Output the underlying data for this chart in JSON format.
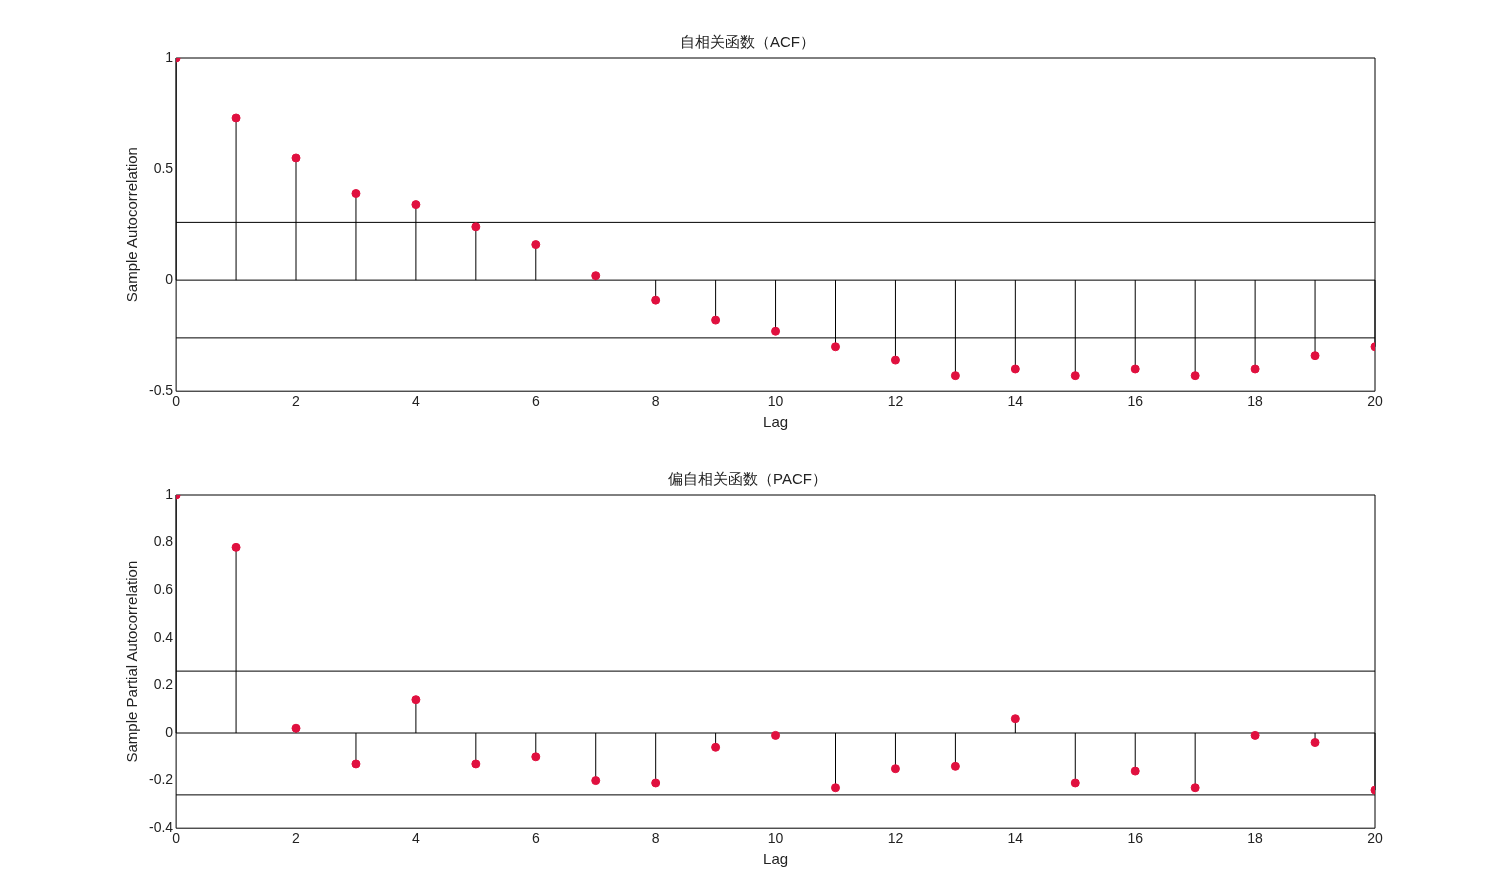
{
  "chart_data": [
    {
      "type": "lollipop",
      "title": "自相关函数（ACF）",
      "xlabel": "Lag",
      "ylabel": "Sample Autocorrelation",
      "color": "#e0103f",
      "marker": "circle",
      "x": [
        0,
        1,
        2,
        3,
        4,
        5,
        6,
        7,
        8,
        9,
        10,
        11,
        12,
        13,
        14,
        15,
        16,
        17,
        18,
        19,
        20
      ],
      "values": [
        1,
        0.73,
        0.55,
        0.39,
        0.34,
        0.24,
        0.16,
        0.02,
        -0.09,
        -0.18,
        -0.23,
        -0.3,
        -0.36,
        -0.43,
        -0.4,
        -0.43,
        -0.4,
        -0.43,
        -0.4,
        -0.34,
        -0.3
      ],
      "xlim": [
        0,
        20
      ],
      "xticks": [
        0,
        2,
        4,
        6,
        8,
        10,
        12,
        14,
        16,
        18,
        20
      ],
      "ylim": [
        -0.5,
        1
      ],
      "yticks": [
        -0.5,
        0,
        0.5,
        1
      ],
      "ref_lines": [
        {
          "axis": "y",
          "value": 0.26
        },
        {
          "axis": "y",
          "value": -0.26
        }
      ]
    },
    {
      "type": "lollipop",
      "title": "偏自相关函数（PACF）",
      "xlabel": "Lag",
      "ylabel": "Sample Partial Autocorrelation",
      "color": "#e0103f",
      "marker": "circle",
      "x": [
        0,
        1,
        2,
        3,
        4,
        5,
        6,
        7,
        8,
        9,
        10,
        11,
        12,
        13,
        14,
        15,
        16,
        17,
        18,
        19,
        20
      ],
      "values": [
        1,
        0.78,
        0.02,
        -0.13,
        0.14,
        -0.13,
        -0.1,
        -0.2,
        -0.21,
        -0.06,
        -0.01,
        -0.23,
        -0.15,
        -0.14,
        0.06,
        -0.21,
        -0.16,
        -0.23,
        -0.01,
        -0.04,
        -0.24
      ],
      "xlim": [
        0,
        20
      ],
      "xticks": [
        0,
        2,
        4,
        6,
        8,
        10,
        12,
        14,
        16,
        18,
        20
      ],
      "ylim": [
        -0.4,
        1
      ],
      "yticks": [
        -0.4,
        -0.2,
        0,
        0.2,
        0.4,
        0.6,
        0.8,
        1
      ],
      "ref_lines": [
        {
          "axis": "y",
          "value": 0.26
        },
        {
          "axis": "y",
          "value": -0.26
        }
      ]
    }
  ]
}
